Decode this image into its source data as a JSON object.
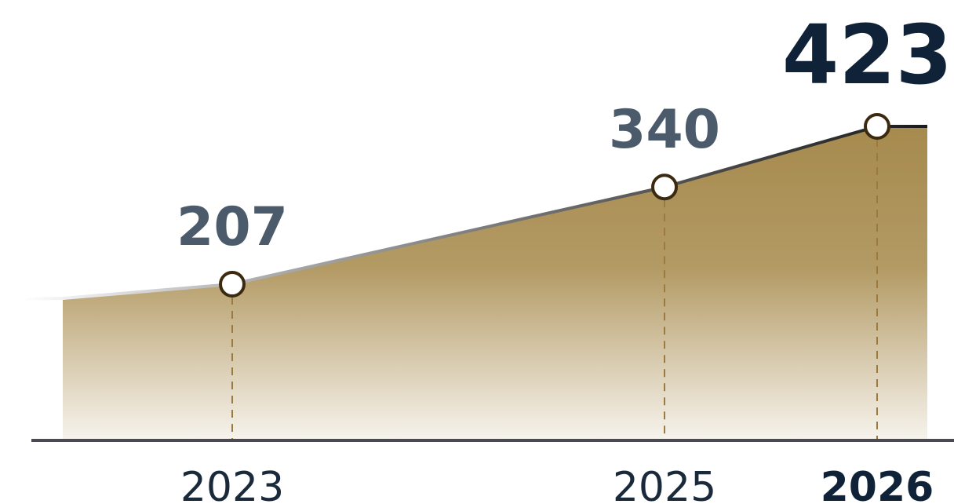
{
  "chart_data": {
    "type": "area",
    "title": "",
    "xlabel": "",
    "ylabel": "",
    "x": [
      "2023",
      "2025",
      "2026"
    ],
    "values": [
      207,
      340,
      423
    ],
    "data_labels": [
      "207",
      "340",
      "423"
    ],
    "tick_labels": [
      "2023",
      "2025",
      "2026"
    ],
    "highlight": "2026",
    "grid": false,
    "colors": {
      "fill_top": "#a68a4e",
      "fill_bottom": "#f7f4ee",
      "line": "#222222",
      "marker_stroke": "#3b2a10",
      "marker_fill": "#ffffff",
      "drop_line": "#9a7a3e",
      "baseline": "#4a4a52",
      "value_label": "#4b5b6b",
      "highlight_text": "#0f2238",
      "year_label": "#1a2a3a"
    }
  }
}
